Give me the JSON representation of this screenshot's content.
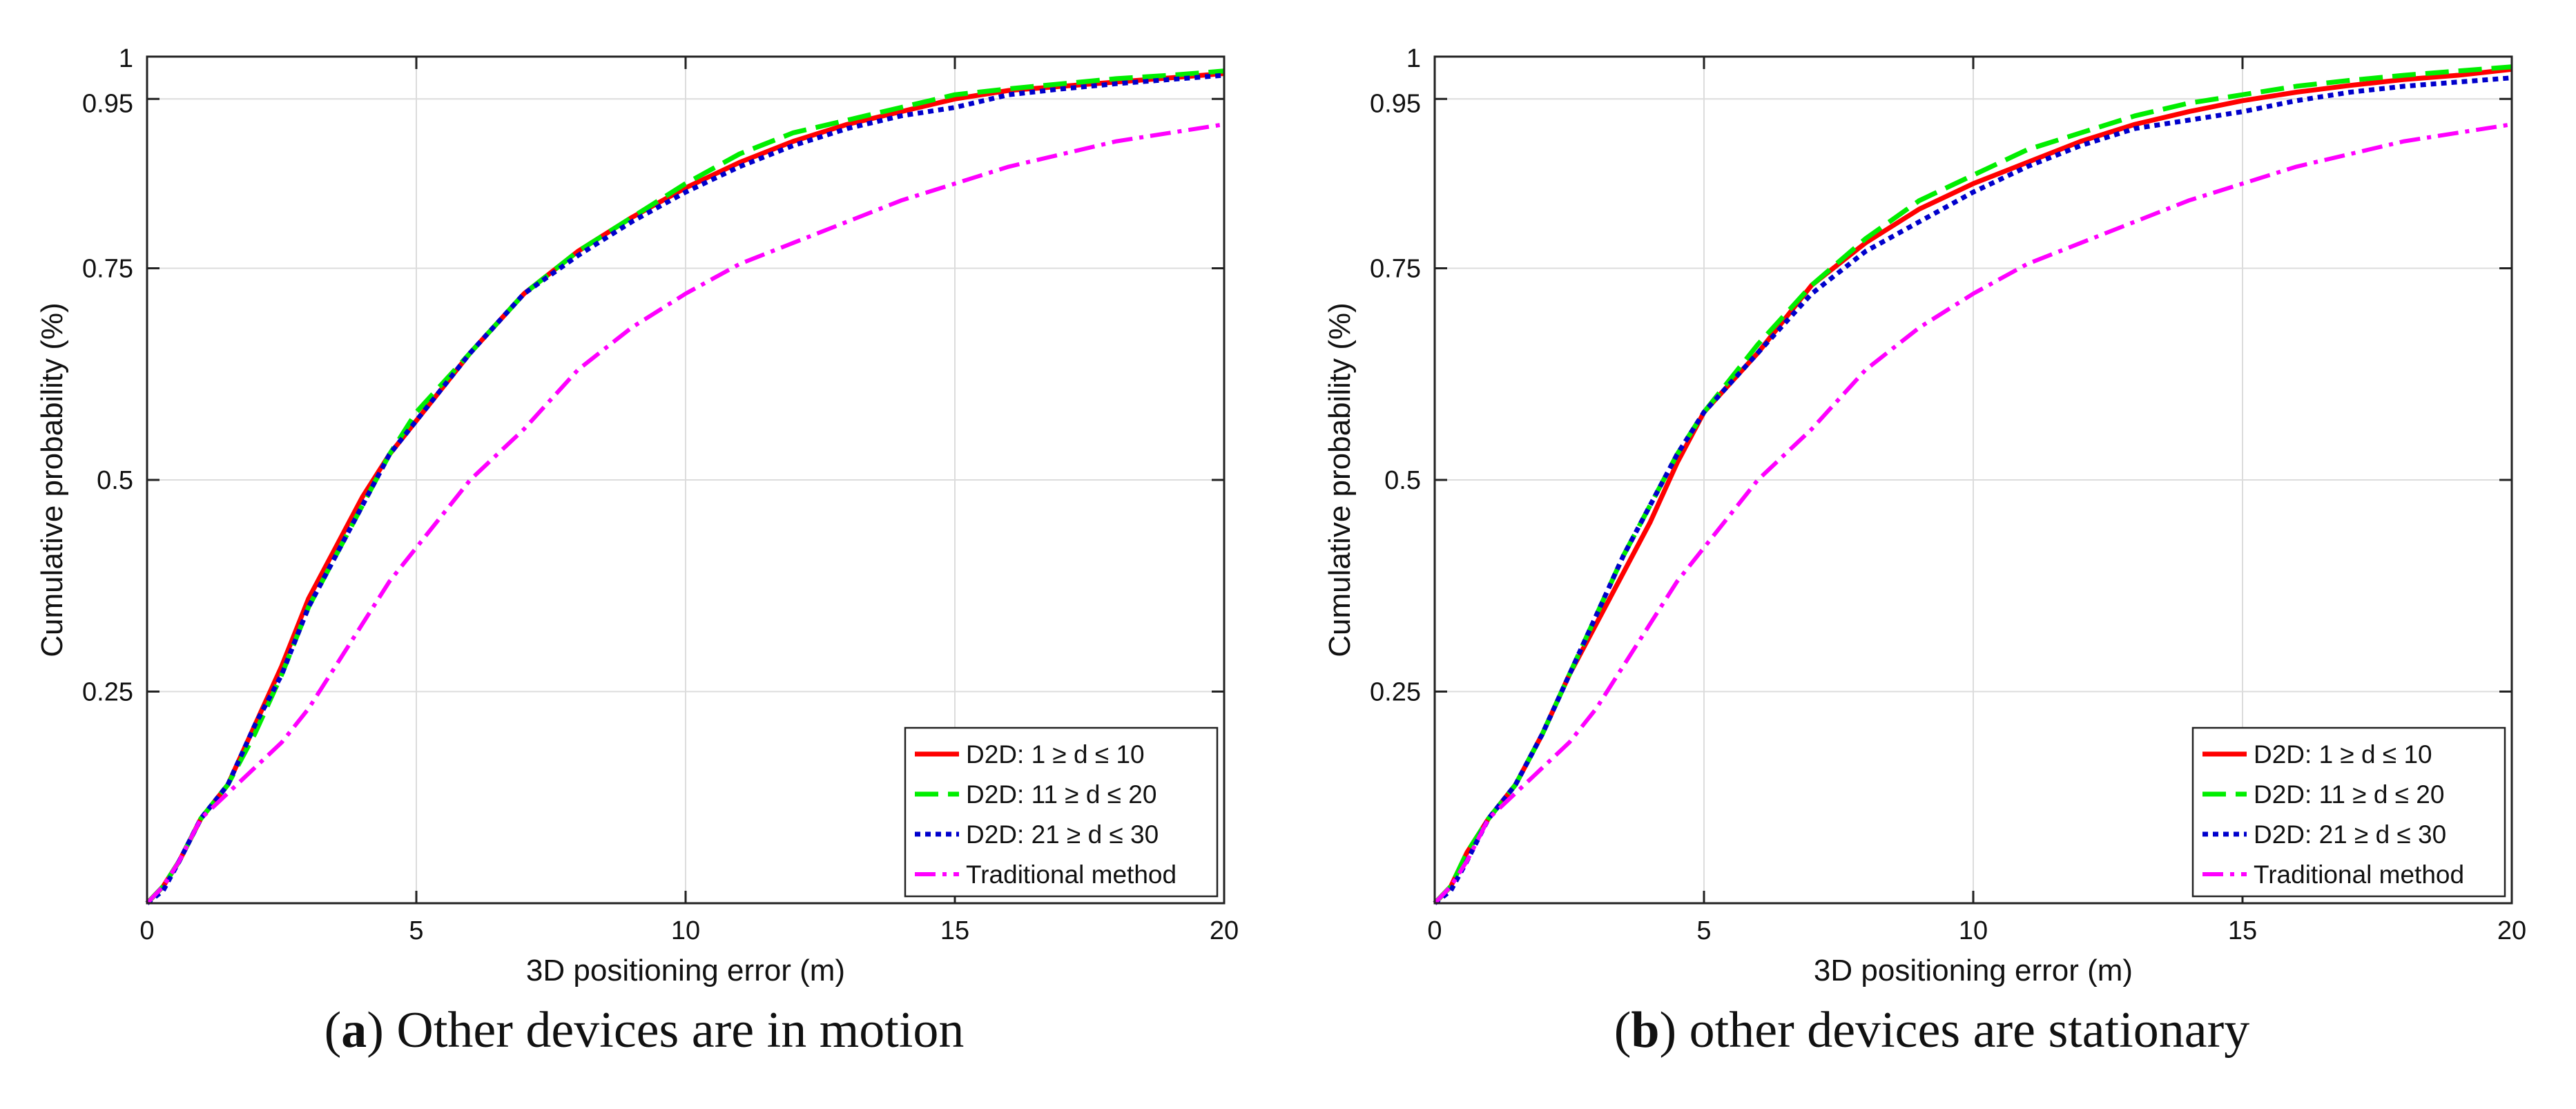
{
  "chart_data": [
    {
      "type": "line",
      "caption_letter": "a",
      "caption_text": ") Other devices are in motion",
      "caption_open": "(",
      "xlabel": "3D positioning error (m)",
      "ylabel": "Cumulative probability (%)",
      "xlim": [
        0,
        20
      ],
      "ylim": [
        0,
        1
      ],
      "xticks": [
        0,
        5,
        10,
        15,
        20
      ],
      "xtick_labels": [
        "0",
        "5",
        "10",
        "15",
        "20"
      ],
      "yticks": [
        0.25,
        0.5,
        0.75,
        0.95,
        1
      ],
      "ytick_labels": [
        "0.25",
        "0.5",
        "0.75",
        "0.95",
        "1"
      ],
      "grid": true,
      "legend_position": "bottom-right",
      "series": [
        {
          "name": "D2D: 1 ≥ d ≤ 10",
          "color": "#ff0000",
          "style": "solid",
          "x": [
            0,
            0.3,
            0.6,
            1.0,
            1.5,
            2.0,
            2.5,
            3.0,
            3.5,
            4.0,
            4.5,
            5.0,
            6.0,
            7.0,
            8.0,
            9.0,
            10.0,
            11.0,
            12.0,
            13.0,
            14.0,
            15.0,
            16.0,
            17.0,
            18.0,
            19.0,
            20.0
          ],
          "y": [
            0,
            0.02,
            0.05,
            0.1,
            0.14,
            0.21,
            0.28,
            0.36,
            0.42,
            0.48,
            0.53,
            0.57,
            0.65,
            0.72,
            0.77,
            0.81,
            0.845,
            0.875,
            0.9,
            0.92,
            0.935,
            0.95,
            0.96,
            0.965,
            0.97,
            0.975,
            0.98
          ]
        },
        {
          "name": "D2D: 11 ≥ d ≤ 20",
          "color": "#00ee00",
          "style": "dashed",
          "x": [
            0,
            0.3,
            0.6,
            1.0,
            1.5,
            2.0,
            2.5,
            3.0,
            3.5,
            4.0,
            4.5,
            5.0,
            6.0,
            7.0,
            8.0,
            9.0,
            10.0,
            11.0,
            12.0,
            13.0,
            14.0,
            15.0,
            16.0,
            17.0,
            18.0,
            19.0,
            20.0
          ],
          "y": [
            0,
            0.02,
            0.05,
            0.1,
            0.14,
            0.2,
            0.27,
            0.35,
            0.41,
            0.47,
            0.53,
            0.58,
            0.65,
            0.72,
            0.77,
            0.81,
            0.85,
            0.885,
            0.91,
            0.925,
            0.94,
            0.955,
            0.962,
            0.968,
            0.974,
            0.978,
            0.983
          ]
        },
        {
          "name": "D2D: 21 ≥ d ≤ 30",
          "color": "#0000cc",
          "style": "dotted",
          "x": [
            0,
            0.3,
            0.6,
            1.0,
            1.5,
            2.0,
            2.5,
            3.0,
            3.5,
            4.0,
            4.5,
            5.0,
            6.0,
            7.0,
            8.0,
            9.0,
            10.0,
            11.0,
            12.0,
            13.0,
            14.0,
            15.0,
            16.0,
            17.0,
            18.0,
            19.0,
            20.0
          ],
          "y": [
            0,
            0.015,
            0.05,
            0.1,
            0.14,
            0.21,
            0.27,
            0.35,
            0.41,
            0.47,
            0.53,
            0.57,
            0.65,
            0.72,
            0.765,
            0.805,
            0.84,
            0.87,
            0.895,
            0.915,
            0.93,
            0.94,
            0.955,
            0.962,
            0.968,
            0.973,
            0.978
          ]
        },
        {
          "name": "Traditional method",
          "color": "#ff00ff",
          "style": "dashdot",
          "x": [
            0,
            0.3,
            0.6,
            1.0,
            1.5,
            2.0,
            2.5,
            3.0,
            3.5,
            4.0,
            4.5,
            5.0,
            6.0,
            7.0,
            8.0,
            9.0,
            10.0,
            11.0,
            12.0,
            13.0,
            14.0,
            15.0,
            16.0,
            17.0,
            18.0,
            19.0,
            20.0
          ],
          "y": [
            0,
            0.02,
            0.05,
            0.1,
            0.13,
            0.16,
            0.19,
            0.23,
            0.28,
            0.33,
            0.38,
            0.42,
            0.5,
            0.56,
            0.63,
            0.68,
            0.72,
            0.755,
            0.78,
            0.805,
            0.83,
            0.85,
            0.87,
            0.885,
            0.9,
            0.91,
            0.92
          ]
        }
      ]
    },
    {
      "type": "line",
      "caption_letter": "b",
      "caption_text": ") other devices are stationary",
      "caption_open": "(",
      "xlabel": "3D positioning error (m)",
      "ylabel": "Cumulative probability (%)",
      "xlim": [
        0,
        20
      ],
      "ylim": [
        0,
        1
      ],
      "xticks": [
        0,
        5,
        10,
        15,
        20
      ],
      "xtick_labels": [
        "0",
        "5",
        "10",
        "15",
        "20"
      ],
      "yticks": [
        0.25,
        0.5,
        0.75,
        0.95,
        1
      ],
      "ytick_labels": [
        "0.25",
        "0.5",
        "0.75",
        "0.95",
        "1"
      ],
      "grid": true,
      "legend_position": "bottom-right",
      "series": [
        {
          "name": "D2D: 1 ≥ d ≤ 10",
          "color": "#ff0000",
          "style": "solid",
          "x": [
            0,
            0.3,
            0.6,
            1.0,
            1.5,
            2.0,
            2.5,
            3.0,
            3.5,
            4.0,
            4.5,
            5.0,
            6.0,
            7.0,
            8.0,
            9.0,
            10.0,
            11.0,
            12.0,
            13.0,
            14.0,
            15.0,
            16.0,
            17.0,
            18.0,
            19.0,
            20.0
          ],
          "y": [
            0,
            0.02,
            0.06,
            0.1,
            0.14,
            0.2,
            0.27,
            0.33,
            0.39,
            0.45,
            0.52,
            0.58,
            0.65,
            0.73,
            0.78,
            0.82,
            0.85,
            0.875,
            0.9,
            0.92,
            0.935,
            0.948,
            0.958,
            0.966,
            0.973,
            0.978,
            0.985
          ]
        },
        {
          "name": "D2D: 11 ≥ d ≤ 20",
          "color": "#00ee00",
          "style": "dashed",
          "x": [
            0,
            0.3,
            0.6,
            1.0,
            1.5,
            2.0,
            2.5,
            3.0,
            3.5,
            4.0,
            4.5,
            5.0,
            6.0,
            7.0,
            8.0,
            9.0,
            10.0,
            11.0,
            12.0,
            13.0,
            14.0,
            15.0,
            16.0,
            17.0,
            18.0,
            19.0,
            20.0
          ],
          "y": [
            0,
            0.02,
            0.06,
            0.1,
            0.14,
            0.2,
            0.27,
            0.34,
            0.41,
            0.47,
            0.53,
            0.58,
            0.66,
            0.73,
            0.785,
            0.83,
            0.86,
            0.89,
            0.91,
            0.93,
            0.945,
            0.955,
            0.965,
            0.972,
            0.978,
            0.983,
            0.988
          ]
        },
        {
          "name": "D2D: 21 ≥ d ≤ 30",
          "color": "#0000cc",
          "style": "dotted",
          "x": [
            0,
            0.3,
            0.6,
            1.0,
            1.5,
            2.0,
            2.5,
            3.0,
            3.5,
            4.0,
            4.5,
            5.0,
            6.0,
            7.0,
            8.0,
            9.0,
            10.0,
            11.0,
            12.0,
            13.0,
            14.0,
            15.0,
            16.0,
            17.0,
            18.0,
            19.0,
            20.0
          ],
          "y": [
            0,
            0.015,
            0.05,
            0.1,
            0.14,
            0.2,
            0.27,
            0.34,
            0.41,
            0.47,
            0.53,
            0.58,
            0.65,
            0.72,
            0.77,
            0.805,
            0.84,
            0.87,
            0.895,
            0.915,
            0.925,
            0.935,
            0.948,
            0.958,
            0.965,
            0.97,
            0.975
          ]
        },
        {
          "name": "Traditional method",
          "color": "#ff00ff",
          "style": "dashdot",
          "x": [
            0,
            0.3,
            0.6,
            1.0,
            1.5,
            2.0,
            2.5,
            3.0,
            3.5,
            4.0,
            4.5,
            5.0,
            6.0,
            7.0,
            8.0,
            9.0,
            10.0,
            11.0,
            12.0,
            13.0,
            14.0,
            15.0,
            16.0,
            17.0,
            18.0,
            19.0,
            20.0
          ],
          "y": [
            0,
            0.02,
            0.05,
            0.1,
            0.13,
            0.16,
            0.19,
            0.23,
            0.28,
            0.33,
            0.38,
            0.42,
            0.5,
            0.56,
            0.63,
            0.68,
            0.72,
            0.755,
            0.78,
            0.805,
            0.83,
            0.85,
            0.87,
            0.885,
            0.9,
            0.91,
            0.92
          ]
        }
      ]
    }
  ]
}
